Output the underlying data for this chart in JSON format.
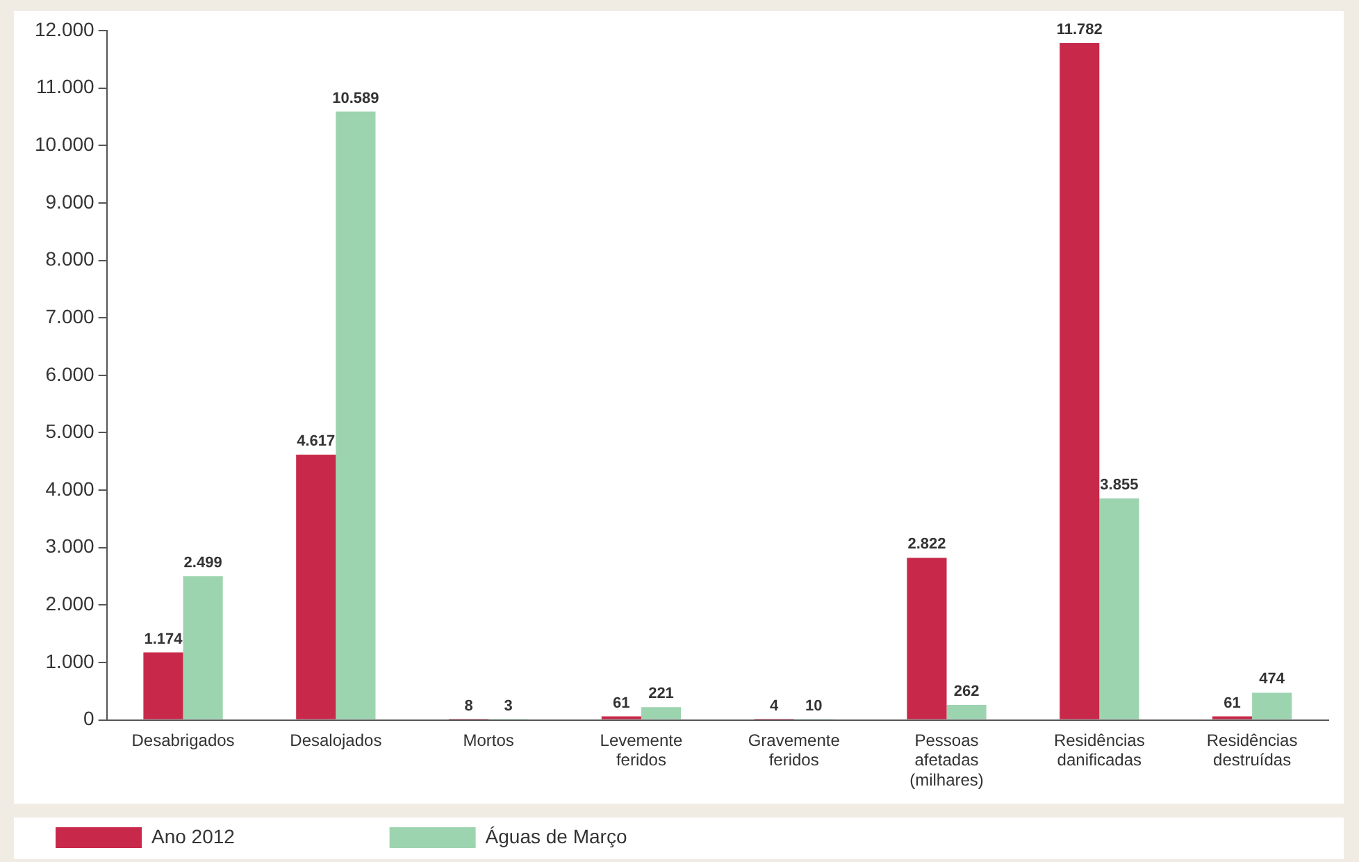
{
  "chart_data": {
    "type": "bar",
    "categories": [
      "Desabrigados",
      "Desalojados",
      "Mortos",
      "Levemente feridos",
      "Gravemente feridos",
      "Pessoas afetadas (milhares)",
      "Residências danificadas",
      "Residências destruídas"
    ],
    "series": [
      {
        "name": "Ano 2012",
        "color": "#c8294a",
        "values": [
          1174,
          4617,
          8,
          61,
          4,
          2822,
          11782,
          61
        ],
        "value_labels": [
          "1.174",
          "4.617",
          "8",
          "61",
          "4",
          "2.822",
          "11.782",
          "61"
        ]
      },
      {
        "name": "Águas de Março",
        "color": "#9dd4b0",
        "values": [
          2499,
          10589,
          3,
          221,
          10,
          262,
          3855,
          474
        ],
        "value_labels": [
          "2.499",
          "10.589",
          "3",
          "221",
          "10",
          "262",
          "3.855",
          "474"
        ]
      }
    ],
    "ylim": [
      0,
      12000
    ],
    "yticks": [
      0,
      {
        "value": 1000,
        "label": "1.000"
      },
      {
        "value": 2000,
        "label": "2.000"
      },
      {
        "value": 3000,
        "label": "3.000"
      },
      {
        "value": 4000,
        "label": "4.000"
      },
      {
        "value": 5000,
        "label": "5.000"
      },
      {
        "value": 6000,
        "label": "6.000"
      },
      {
        "value": 7000,
        "label": "7.000"
      },
      {
        "value": 8000,
        "label": "8.000"
      },
      {
        "value": 9000,
        "label": "9.000"
      },
      {
        "value": 10000,
        "label": "10.000"
      },
      {
        "value": 11000,
        "label": "11.000"
      },
      {
        "value": 12000,
        "label": "12.000"
      }
    ],
    "grid": false,
    "legend": "bottom"
  }
}
